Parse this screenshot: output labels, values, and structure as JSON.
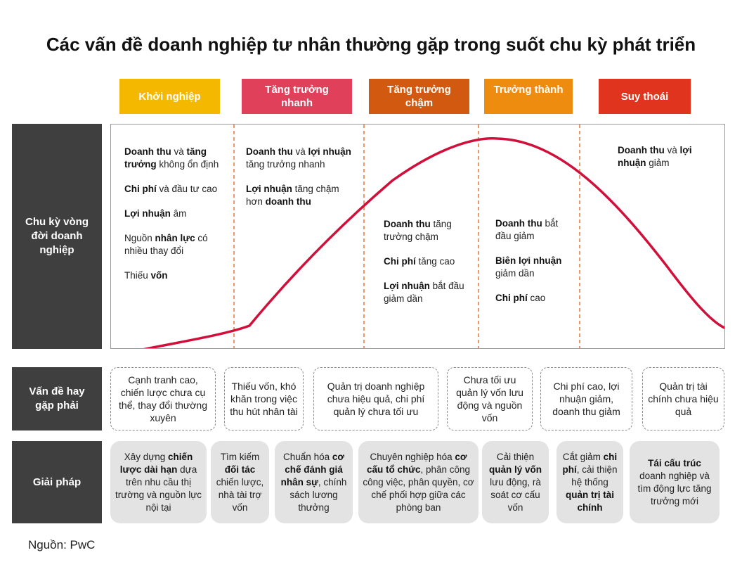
{
  "title": "Các vấn đề doanh nghiệp tư nhân thường gặp trong suốt chu kỳ phát triển",
  "colors": {
    "khoi_nghiep": "#f5b800",
    "tang_truong_nhanh": "#e0405a",
    "tang_truong_cham": "#d25a10",
    "truong_thanh": "#ee8c10",
    "suy_thoai": "#e0341f",
    "row_label_bg": "#3f3f3f",
    "curve": "#d0103a",
    "divider": "#e06020",
    "solution_bg": "#e3e3e3"
  },
  "stages": [
    {
      "label": "Khởi nghiệp"
    },
    {
      "label": "Tăng trưởng nhanh"
    },
    {
      "label": "Tăng trưởng chậm"
    },
    {
      "label": "Trưởng thành"
    },
    {
      "label": "Suy thoái"
    }
  ],
  "row_labels": {
    "lifecycle": "Chu kỳ vòng đời doanh nghiệp",
    "issues": "Vấn đề hay gặp phải",
    "solutions": "Giải pháp"
  },
  "lifecycle_notes": {
    "khoi_nghiep": {
      "n1": {
        "b1": "Doanh thu",
        "t1": " và ",
        "b2": "tăng trưởng",
        "t2": " không ổn định"
      },
      "n2": {
        "b1": "Chi phí",
        "t1": " và đầu tư cao"
      },
      "n3": {
        "b1": "Lợi nhuận",
        "t1": " âm"
      },
      "n4": {
        "t0": "Nguồn ",
        "b1": "nhân lực",
        "t1": " có nhiều thay đổi"
      },
      "n5": {
        "t0": "Thiếu ",
        "b1": "vốn"
      }
    },
    "tang_truong_nhanh": {
      "n1": {
        "b1": "Doanh thu",
        "t1": " và ",
        "b2": "lợi nhuận",
        "t2": " tăng trưởng nhanh"
      },
      "n2": {
        "b1": "Lợi nhuận",
        "t1": " tăng chậm hơn ",
        "b2": "doanh thu"
      }
    },
    "tang_truong_cham": {
      "n1": {
        "b1": "Doanh thu",
        "t1": " tăng trưởng chậm"
      },
      "n2": {
        "b1": "Chi phí",
        "t1": " tăng cao"
      },
      "n3": {
        "b1": "Lợi nhuận",
        "t1": " bắt đầu giảm dần"
      }
    },
    "truong_thanh": {
      "n1": {
        "b1": "Doanh thu",
        "t1": " bắt đầu giảm"
      },
      "n2": {
        "b1": "Biên lợi nhuận",
        "t1": " giảm dần"
      },
      "n3": {
        "b1": "Chi phí",
        "t1": " cao"
      }
    },
    "suy_thoai": {
      "n1": {
        "b1": "Doanh thu",
        "t1": " và ",
        "b2": "lợi nhuận",
        "t2": " giảm"
      }
    }
  },
  "issues": [
    "Cạnh tranh cao, chiến lược chưa cụ thể, thay đổi thường xuyên",
    "Thiếu vốn, khó khăn trong việc thu hút nhân tài",
    "Quản trị doanh nghiệp chưa hiệu quả, chi phí quản lý chưa tối ưu",
    "Chưa tối ưu quản lý vốn lưu động và nguồn vốn",
    "Chi phí cao, lợi nhuận giảm, doanh thu giảm",
    "Quản trị tài chính chưa hiệu quả"
  ],
  "solutions": {
    "s1": {
      "t0": "Xây dựng ",
      "b1": "chiến lược dài hạn",
      "t1": " dựa trên nhu cầu thị trường và nguồn lực nội tại"
    },
    "s2": {
      "t0": "Tìm kiếm ",
      "b1": "đối tác",
      "t1": " chiến lược, nhà tài trợ vốn"
    },
    "s3": {
      "t0": "Chuẩn hóa ",
      "b1": "cơ chế đánh giá nhân sự",
      "t1": ", chính sách lương thưởng"
    },
    "s4": {
      "t0": "Chuyên nghiệp hóa ",
      "b1": "cơ cấu tổ chức",
      "t1": ", phân công công việc, phân quyền, cơ chế phối hợp giữa các phòng ban"
    },
    "s5": {
      "t0": "Cải thiện ",
      "b1": "quản lý vốn",
      "t1": " lưu động, rà soát cơ cấu vốn"
    },
    "s6": {
      "t0": "Cắt giảm ",
      "b1": "chi phí",
      "t1": ", cải thiện hệ thống ",
      "b2": "quản trị tài chính"
    },
    "s7": {
      "b1": "Tái cấu trúc",
      "t1": " doanh nghiệp và tìm động lực tăng trưởng mới"
    }
  },
  "source": "Nguồn: PwC"
}
